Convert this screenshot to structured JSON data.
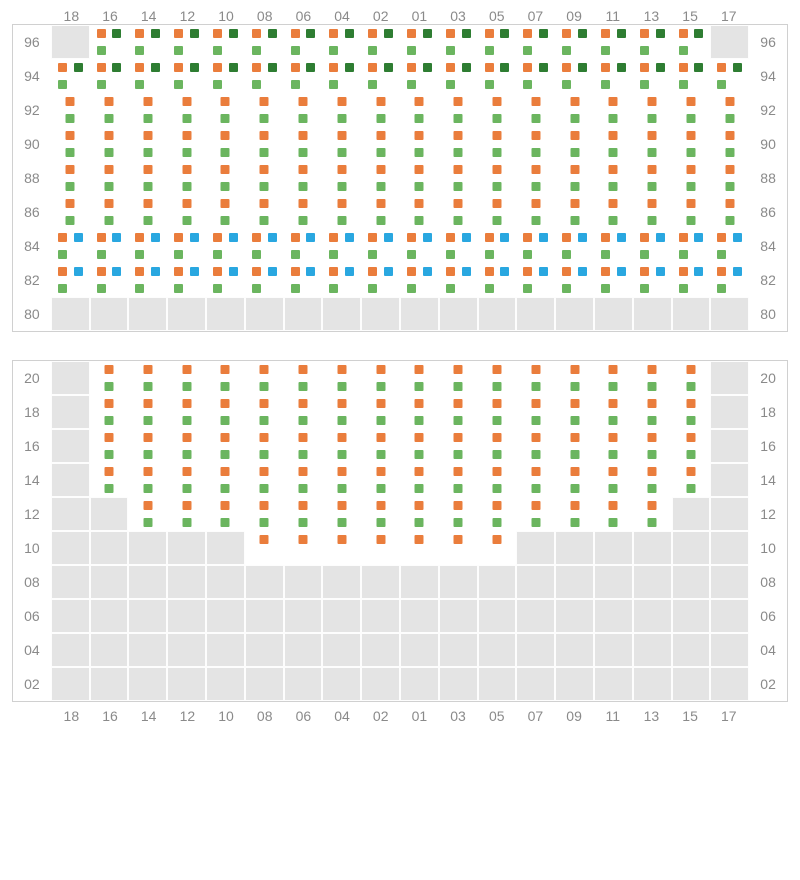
{
  "colors": {
    "orange": "#ea7d3c",
    "green": "#6bb55f",
    "darkgreen": "#2e7d32",
    "blue": "#29a7e0",
    "label": "#8a8a8a",
    "greyCell": "#e4e4e4"
  },
  "columns": [
    "18",
    "16",
    "14",
    "12",
    "10",
    "08",
    "06",
    "04",
    "02",
    "01",
    "03",
    "05",
    "07",
    "09",
    "11",
    "13",
    "15",
    "17"
  ],
  "sectionA": {
    "rowLabels": [
      "96",
      "94",
      "92",
      "90",
      "88",
      "86",
      "84",
      "82",
      "80"
    ],
    "cells": [
      {
        "row": 0,
        "col": 0,
        "bg": "grey"
      },
      {
        "row": 0,
        "col": 1,
        "bg": "white",
        "mk": [
          "O-tl",
          "DG-tr",
          "G-bl"
        ]
      },
      {
        "row": 0,
        "col": 2,
        "bg": "white",
        "mk": [
          "O-tl",
          "DG-tr",
          "G-bl"
        ]
      },
      {
        "row": 0,
        "col": 3,
        "bg": "white",
        "mk": [
          "O-tl",
          "DG-tr",
          "G-bl"
        ]
      },
      {
        "row": 0,
        "col": 4,
        "bg": "white",
        "mk": [
          "O-tl",
          "DG-tr",
          "G-bl"
        ]
      },
      {
        "row": 0,
        "col": 5,
        "bg": "white",
        "mk": [
          "O-tl",
          "DG-tr",
          "G-bl"
        ]
      },
      {
        "row": 0,
        "col": 6,
        "bg": "white",
        "mk": [
          "O-tl",
          "DG-tr",
          "G-bl"
        ]
      },
      {
        "row": 0,
        "col": 7,
        "bg": "white",
        "mk": [
          "O-tl",
          "DG-tr",
          "G-bl"
        ]
      },
      {
        "row": 0,
        "col": 8,
        "bg": "white",
        "mk": [
          "O-tl",
          "DG-tr",
          "G-bl"
        ]
      },
      {
        "row": 0,
        "col": 9,
        "bg": "white",
        "mk": [
          "O-tl",
          "DG-tr",
          "G-bl"
        ]
      },
      {
        "row": 0,
        "col": 10,
        "bg": "white",
        "mk": [
          "O-tl",
          "DG-tr",
          "G-bl"
        ]
      },
      {
        "row": 0,
        "col": 11,
        "bg": "white",
        "mk": [
          "O-tl",
          "DG-tr",
          "G-bl"
        ]
      },
      {
        "row": 0,
        "col": 12,
        "bg": "white",
        "mk": [
          "O-tl",
          "DG-tr",
          "G-bl"
        ]
      },
      {
        "row": 0,
        "col": 13,
        "bg": "white",
        "mk": [
          "O-tl",
          "DG-tr",
          "G-bl"
        ]
      },
      {
        "row": 0,
        "col": 14,
        "bg": "white",
        "mk": [
          "O-tl",
          "DG-tr",
          "G-bl"
        ]
      },
      {
        "row": 0,
        "col": 15,
        "bg": "white",
        "mk": [
          "O-tl",
          "DG-tr",
          "G-bl"
        ]
      },
      {
        "row": 0,
        "col": 16,
        "bg": "white",
        "mk": [
          "O-tl",
          "DG-tr",
          "G-bl"
        ]
      },
      {
        "row": 0,
        "col": 17,
        "bg": "grey"
      },
      {
        "row": 1,
        "cols": [
          0,
          1,
          2,
          3,
          4,
          5,
          6,
          7,
          8,
          9,
          10,
          11,
          12,
          13,
          14,
          15,
          16,
          17
        ],
        "bg": "white",
        "mk": [
          "O-tl",
          "DG-tr",
          "G-bl"
        ]
      },
      {
        "row": 2,
        "cols": [
          0,
          1,
          2,
          3,
          4,
          5,
          6,
          7,
          8,
          9,
          10,
          11,
          12,
          13,
          14,
          15,
          16,
          17
        ],
        "bg": "white",
        "mk": [
          "O-tc",
          "G-bc"
        ]
      },
      {
        "row": 3,
        "cols": [
          0,
          1,
          2,
          3,
          4,
          5,
          6,
          7,
          8,
          9,
          10,
          11,
          12,
          13,
          14,
          15,
          16,
          17
        ],
        "bg": "white",
        "mk": [
          "O-tc",
          "G-bc"
        ]
      },
      {
        "row": 4,
        "cols": [
          0,
          1,
          2,
          3,
          4,
          5,
          6,
          7,
          8,
          9,
          10,
          11,
          12,
          13,
          14,
          15,
          16,
          17
        ],
        "bg": "white",
        "mk": [
          "O-tc",
          "G-bc"
        ]
      },
      {
        "row": 5,
        "cols": [
          0,
          1,
          2,
          3,
          4,
          5,
          6,
          7,
          8,
          9,
          10,
          11,
          12,
          13,
          14,
          15,
          16,
          17
        ],
        "bg": "white",
        "mk": [
          "O-tc",
          "G-bc"
        ]
      },
      {
        "row": 6,
        "cols": [
          0,
          1,
          2,
          3,
          4,
          5,
          6,
          7,
          8,
          9,
          10,
          11,
          12,
          13,
          14,
          15,
          16,
          17
        ],
        "bg": "white",
        "mk": [
          "O-tl",
          "B-tr",
          "G-bl"
        ]
      },
      {
        "row": 7,
        "cols": [
          0,
          1,
          2,
          3,
          4,
          5,
          6,
          7,
          8,
          9,
          10,
          11,
          12,
          13,
          14,
          15,
          16,
          17
        ],
        "bg": "white",
        "mk": [
          "O-tl",
          "B-tr",
          "G-bl"
        ]
      },
      {
        "row": 8,
        "cols": [
          0,
          1,
          2,
          3,
          4,
          5,
          6,
          7,
          8,
          9,
          10,
          11,
          12,
          13,
          14,
          15,
          16,
          17
        ],
        "bg": "grey"
      }
    ]
  },
  "sectionB": {
    "rowLabels": [
      "20",
      "18",
      "16",
      "14",
      "12",
      "10",
      "08",
      "06",
      "04",
      "02"
    ],
    "cells": [
      {
        "row": 0,
        "col": 0,
        "bg": "grey"
      },
      {
        "row": 0,
        "cols": [
          1,
          2,
          3,
          4,
          5,
          6,
          7,
          8,
          9,
          10,
          11,
          12,
          13,
          14,
          15,
          16
        ],
        "bg": "white",
        "mk": [
          "O-tc",
          "G-bc"
        ]
      },
      {
        "row": 0,
        "col": 17,
        "bg": "grey"
      },
      {
        "row": 1,
        "col": 0,
        "bg": "grey"
      },
      {
        "row": 1,
        "cols": [
          1,
          2,
          3,
          4,
          5,
          6,
          7,
          8,
          9,
          10,
          11,
          12,
          13,
          14,
          15,
          16
        ],
        "bg": "white",
        "mk": [
          "O-tc",
          "G-bc"
        ]
      },
      {
        "row": 1,
        "col": 17,
        "bg": "grey"
      },
      {
        "row": 2,
        "col": 0,
        "bg": "grey"
      },
      {
        "row": 2,
        "cols": [
          1,
          2,
          3,
          4,
          5,
          6,
          7,
          8,
          9,
          10,
          11,
          12,
          13,
          14,
          15,
          16
        ],
        "bg": "white",
        "mk": [
          "O-tc",
          "G-bc"
        ]
      },
      {
        "row": 2,
        "col": 17,
        "bg": "grey"
      },
      {
        "row": 3,
        "col": 0,
        "bg": "grey"
      },
      {
        "row": 3,
        "cols": [
          1,
          2,
          3,
          4,
          5,
          6,
          7,
          8,
          9,
          10,
          11,
          12,
          13,
          14,
          15,
          16
        ],
        "bg": "white",
        "mk": [
          "O-tc",
          "G-bc"
        ]
      },
      {
        "row": 3,
        "col": 17,
        "bg": "grey"
      },
      {
        "row": 4,
        "cols": [
          0,
          1
        ],
        "bg": "grey"
      },
      {
        "row": 4,
        "cols": [
          2,
          3,
          4,
          5,
          6,
          7,
          8,
          9,
          10,
          11,
          12,
          13,
          14,
          15
        ],
        "bg": "white",
        "mk": [
          "O-tc",
          "G-bc"
        ]
      },
      {
        "row": 4,
        "cols": [
          16,
          17
        ],
        "bg": "grey"
      },
      {
        "row": 5,
        "cols": [
          0,
          1,
          2,
          3,
          4
        ],
        "bg": "grey"
      },
      {
        "row": 5,
        "cols": [
          5,
          6,
          7,
          8,
          9,
          10,
          11
        ],
        "bg": "white",
        "mk": [
          "O-tc"
        ]
      },
      {
        "row": 5,
        "cols": [
          12,
          13,
          14,
          15,
          16,
          17
        ],
        "bg": "grey"
      },
      {
        "row": 6,
        "cols": [
          0,
          1,
          2,
          3,
          4,
          5,
          6,
          7,
          8,
          9,
          10,
          11,
          12,
          13,
          14,
          15,
          16,
          17
        ],
        "bg": "grey"
      },
      {
        "row": 7,
        "cols": [
          0,
          1,
          2,
          3,
          4,
          5,
          6,
          7,
          8,
          9,
          10,
          11,
          12,
          13,
          14,
          15,
          16,
          17
        ],
        "bg": "grey"
      },
      {
        "row": 8,
        "cols": [
          0,
          1,
          2,
          3,
          4,
          5,
          6,
          7,
          8,
          9,
          10,
          11,
          12,
          13,
          14,
          15,
          16,
          17
        ],
        "bg": "grey"
      },
      {
        "row": 9,
        "cols": [
          0,
          1,
          2,
          3,
          4,
          5,
          6,
          7,
          8,
          9,
          10,
          11,
          12,
          13,
          14,
          15,
          16,
          17
        ],
        "bg": "grey"
      }
    ]
  }
}
